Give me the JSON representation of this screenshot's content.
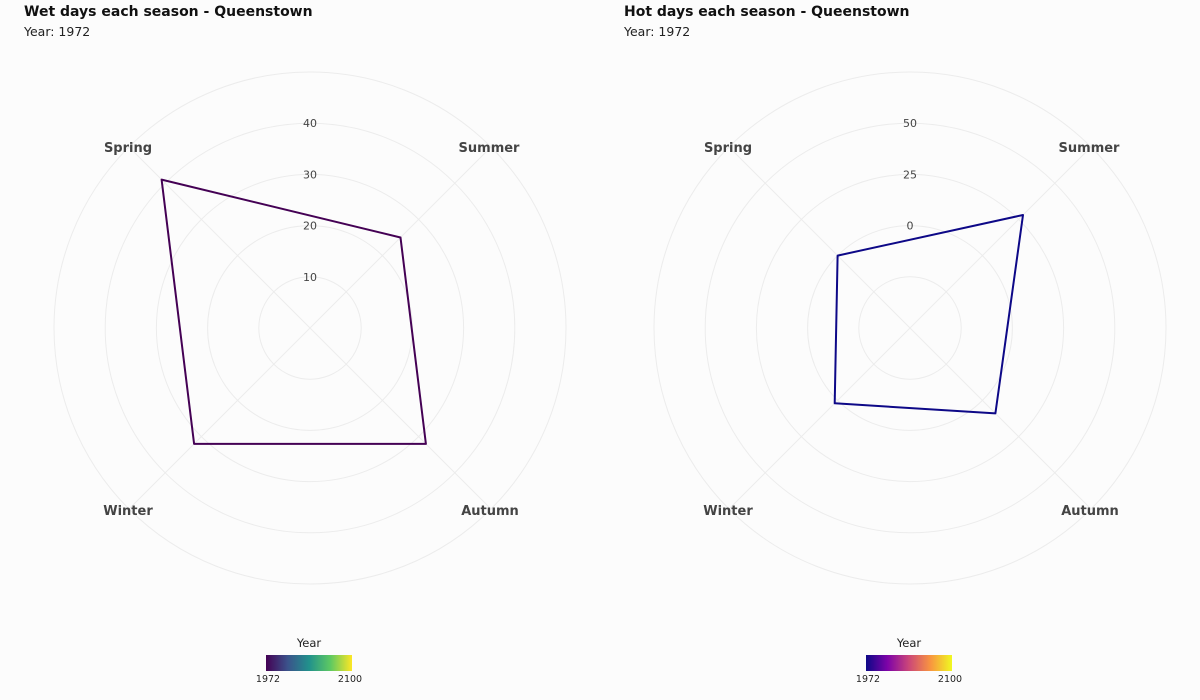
{
  "charts": [
    {
      "title": "Wet days each season",
      "title_location": "- Queenstown",
      "subtitle": "Year: 1972",
      "line_color": "#440154",
      "legend": {
        "title": "Year",
        "min_label": "1972",
        "max_label": "2100",
        "colormap": "viridis",
        "colors": [
          "#440154",
          "#3b528b",
          "#21918c",
          "#5ec962",
          "#fde725"
        ]
      }
    },
    {
      "title": "Hot days each season",
      "title_location": "- Queenstown",
      "subtitle": "Year: 1972",
      "line_color": "#0d0887",
      "legend": {
        "title": "Year",
        "min_label": "1972",
        "max_label": "2100",
        "colormap": "plasma",
        "colors": [
          "#0d0887",
          "#7e03a8",
          "#cc4778",
          "#f89540",
          "#f0f921"
        ]
      }
    }
  ],
  "chart_data": [
    {
      "type": "radar",
      "categories": [
        "Spring",
        "Summer",
        "Autumn",
        "Winter"
      ],
      "series": [
        {
          "values": [
            41,
            25,
            32,
            32
          ]
        }
      ],
      "rlim": [
        0,
        50
      ],
      "r_ticks": [
        10,
        20,
        30,
        40
      ],
      "grid": true
    },
    {
      "type": "radar",
      "categories": [
        "Spring",
        "Summer",
        "Autumn",
        "Winter"
      ],
      "series": [
        {
          "values": [
            0,
            28,
            9,
            2
          ]
        }
      ],
      "rlim": [
        -50,
        75
      ],
      "r_ticks": [
        0,
        25,
        50
      ],
      "grid": true
    }
  ]
}
